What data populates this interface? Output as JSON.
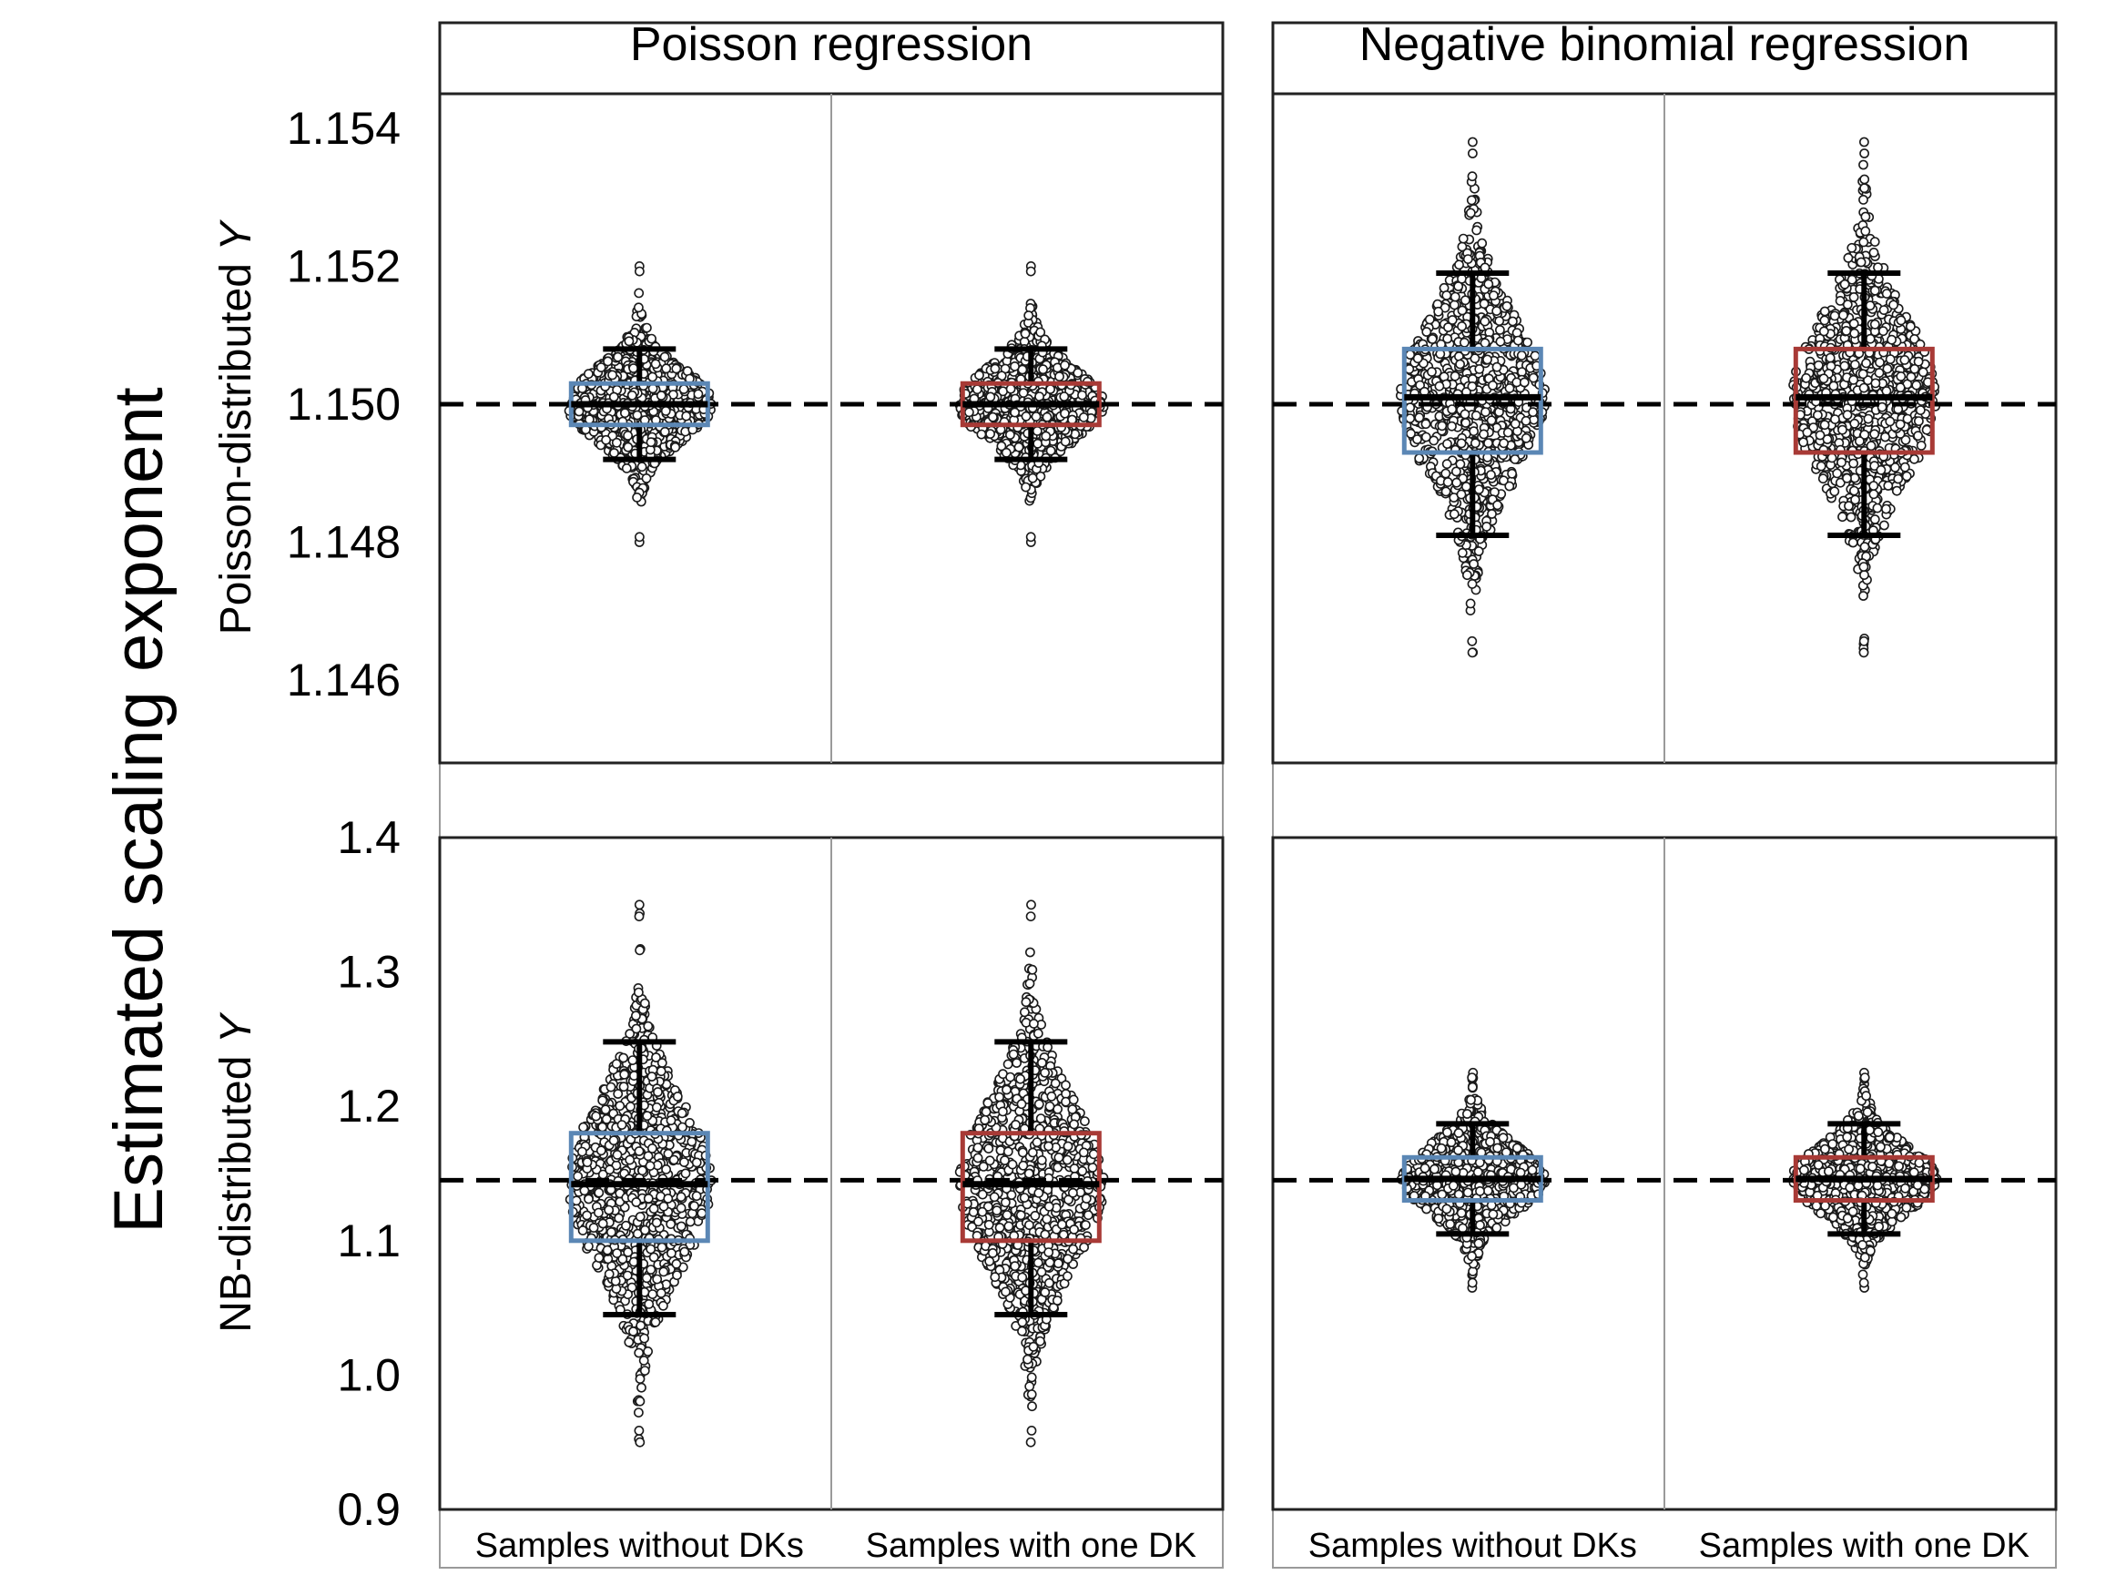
{
  "chart_data": {
    "type": "scatter",
    "subtype": "faceted beeswarm with box overlays",
    "ylabel": "Estimated scaling exponent",
    "columns": [
      {
        "name": "Poisson regression"
      },
      {
        "name": "Negative binomial regression"
      }
    ],
    "rows": [
      {
        "name": "Poisson-distributed Y",
        "name_prefix": "Poisson-distributed ",
        "name_var": "Y",
        "ylim": [
          1.1448,
          1.1545
        ],
        "ticks": [
          1.146,
          1.148,
          1.15,
          1.152,
          1.154
        ],
        "tick_labels": [
          "1.146",
          "1.148",
          "1.150",
          "1.152",
          "1.154"
        ],
        "reference": 1.15
      },
      {
        "name": "NB-distributed Y",
        "name_prefix": "NB-distributed ",
        "name_var": "Y",
        "ylim": [
          0.9,
          1.4
        ],
        "ticks": [
          0.9,
          1.0,
          1.1,
          1.2,
          1.3,
          1.4
        ],
        "tick_labels": [
          "0.9",
          "1.0",
          "1.1",
          "1.2",
          "1.3",
          "1.4"
        ],
        "reference": 1.145
      }
    ],
    "categories": [
      "Samples without DKs",
      "Samples with one DK"
    ],
    "box_colors": [
      "#5b87b5",
      "#a83a36"
    ],
    "panels": [
      {
        "row": 0,
        "col": 0,
        "groups": [
          {
            "category": "Samples without DKs",
            "q1": 1.1497,
            "median": 1.15,
            "q3": 1.1503,
            "lower": 1.1492,
            "upper": 1.1508,
            "min": 1.148,
            "max": 1.152,
            "sd": 0.0005
          },
          {
            "category": "Samples with one DK",
            "q1": 1.1497,
            "median": 1.15,
            "q3": 1.1503,
            "lower": 1.1492,
            "upper": 1.1508,
            "min": 1.148,
            "max": 1.152,
            "sd": 0.0005
          }
        ]
      },
      {
        "row": 0,
        "col": 1,
        "groups": [
          {
            "category": "Samples without DKs",
            "q1": 1.1493,
            "median": 1.1501,
            "q3": 1.1508,
            "lower": 1.1481,
            "upper": 1.1519,
            "min": 1.1464,
            "max": 1.1538,
            "sd": 0.0011
          },
          {
            "category": "Samples with one DK",
            "q1": 1.1493,
            "median": 1.1501,
            "q3": 1.1508,
            "lower": 1.1481,
            "upper": 1.1519,
            "min": 1.1464,
            "max": 1.1538,
            "sd": 0.0011
          }
        ]
      },
      {
        "row": 1,
        "col": 0,
        "groups": [
          {
            "category": "Samples without DKs",
            "q1": 1.1,
            "median": 1.142,
            "q3": 1.18,
            "lower": 1.045,
            "upper": 1.248,
            "min": 0.95,
            "max": 1.35,
            "sd": 0.058
          },
          {
            "category": "Samples with one DK",
            "q1": 1.1,
            "median": 1.142,
            "q3": 1.18,
            "lower": 1.045,
            "upper": 1.248,
            "min": 0.95,
            "max": 1.35,
            "sd": 0.058
          }
        ]
      },
      {
        "row": 1,
        "col": 1,
        "groups": [
          {
            "category": "Samples without DKs",
            "q1": 1.13,
            "median": 1.146,
            "q3": 1.162,
            "lower": 1.105,
            "upper": 1.187,
            "min": 1.065,
            "max": 1.225,
            "sd": 0.024
          },
          {
            "category": "Samples with one DK",
            "q1": 1.13,
            "median": 1.146,
            "q3": 1.162,
            "lower": 1.105,
            "upper": 1.187,
            "min": 1.065,
            "max": 1.225,
            "sd": 0.024
          }
        ]
      }
    ],
    "grid": false,
    "legend": "none"
  }
}
